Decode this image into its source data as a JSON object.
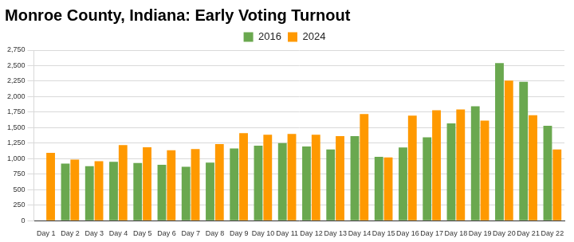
{
  "chart_data": {
    "type": "bar",
    "title": "Monroe County, Indiana: Early Voting Turnout",
    "categories": [
      "Day 1",
      "Day 2",
      "Day 3",
      "Day 4",
      "Day 5",
      "Day 6",
      "Day 7",
      "Day 8",
      "Day 9",
      "Day 10",
      "Day 11",
      "Day 12",
      "Day 13",
      "Day 14",
      "Day 15",
      "Day 16",
      "Day 17",
      "Day 18",
      "Day 19",
      "Day 20",
      "Day 21",
      "Day 22"
    ],
    "series": [
      {
        "name": "2016",
        "color": "#6aa84f",
        "values": [
          null,
          920,
          880,
          950,
          930,
          900,
          870,
          935,
          1165,
          1210,
          1250,
          1195,
          1150,
          1365,
          1030,
          1180,
          1345,
          1570,
          1845,
          2540,
          2240,
          1530
        ]
      },
      {
        "name": "2024",
        "color": "#ff9900",
        "values": [
          1095,
          985,
          960,
          1220,
          1185,
          1135,
          1155,
          1235,
          1410,
          1385,
          1400,
          1385,
          1365,
          1720,
          1020,
          1695,
          1780,
          1795,
          1615,
          2260,
          1700,
          1150
        ]
      }
    ],
    "ylim": [
      0,
      2750
    ],
    "yticks": [
      0,
      250,
      500,
      750,
      {
        "value": 1000,
        "label": "1,000"
      },
      {
        "value": 1250,
        "label": "1,250"
      },
      {
        "value": 1500,
        "label": "1,500"
      },
      {
        "value": 1750,
        "label": "1,750"
      },
      {
        "value": 2000,
        "label": "2,000"
      },
      {
        "value": 2250,
        "label": "2,250"
      },
      {
        "value": 2500,
        "label": "2,500"
      },
      {
        "value": 2750,
        "label": "2,750"
      }
    ],
    "grid": true,
    "legend": "top"
  }
}
